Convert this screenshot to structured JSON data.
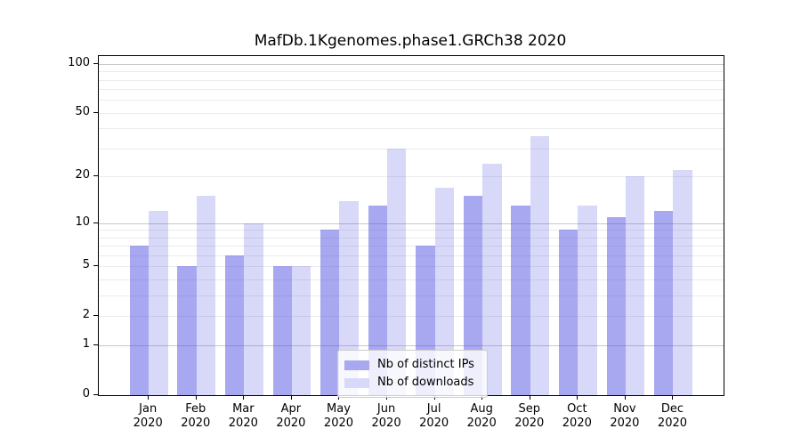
{
  "title": "MafDb.1Kgenomes.phase1.GRCh38 2020",
  "legend": {
    "items": [
      {
        "label": "Nb of distinct IPs",
        "color": "#a8a8f0",
        "rgba": "rgba(85,85,226,0.51)"
      },
      {
        "label": "Nb of downloads",
        "color": "#d8d8f8",
        "rgba": "rgba(85,85,226,0.23)"
      }
    ]
  },
  "chart_data": {
    "type": "bar",
    "title": "MafDb.1Kgenomes.phase1.GRCh38 2020",
    "categories": [
      "Jan",
      "Feb",
      "Mar",
      "Apr",
      "May",
      "Jun",
      "Jul",
      "Aug",
      "Sep",
      "Oct",
      "Nov",
      "Dec"
    ],
    "x_sublabel": "2020",
    "series": [
      {
        "name": "Nb of distinct IPs",
        "color": "#a8a8f0",
        "rgba": "rgba(85,85,226,0.51)",
        "values": [
          7,
          5,
          6,
          5,
          9,
          13,
          7,
          15,
          13,
          9,
          11,
          12
        ]
      },
      {
        "name": "Nb of downloads",
        "color": "#d8d8f8",
        "rgba": "rgba(85,85,226,0.23)",
        "values": [
          12,
          15,
          10,
          5,
          14,
          30,
          17,
          24,
          36,
          13,
          20,
          22
        ]
      }
    ],
    "xlabel": "",
    "ylabel": "",
    "yscale": "log1p",
    "ylim": [
      0,
      111
    ],
    "ytick_labels": [
      "0",
      "1",
      "2",
      "5",
      "10",
      "20",
      "50",
      "100"
    ],
    "yticks": [
      0,
      1,
      2,
      5,
      10,
      20,
      50,
      100
    ],
    "major_grid": [
      1,
      10,
      100
    ],
    "minor_grid": [
      2,
      3,
      4,
      5,
      6,
      7,
      8,
      9,
      20,
      30,
      40,
      50,
      60,
      70,
      80,
      90
    ],
    "grid": true,
    "legend_position": "lower center"
  }
}
